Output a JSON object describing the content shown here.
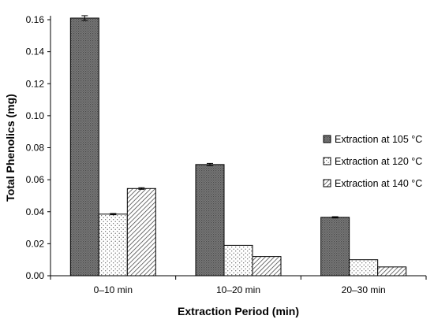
{
  "chart_data": {
    "type": "bar",
    "title": "",
    "xlabel": "Extraction Period (min)",
    "ylabel": "Total Phenolics (mg)",
    "ylim": [
      0,
      0.16
    ],
    "ytick_step": 0.02,
    "ytick_decimals": 2,
    "grid": false,
    "legend_position": "right",
    "categories": [
      "0–10 min",
      "10–20 min",
      "20–30 min"
    ],
    "series": [
      {
        "name": "Extraction at 105 °C",
        "values": [
          0.161,
          0.0695,
          0.0365
        ],
        "errors": [
          0.0015,
          0.0007,
          0.0004
        ],
        "fill": "dark-dots",
        "color": "#6d6d6d"
      },
      {
        "name": "Extraction at 120 °C",
        "values": [
          0.0385,
          0.019,
          0.01
        ],
        "errors": [
          0.0004,
          0,
          0
        ],
        "fill": "light-dots",
        "color": "#ffffff"
      },
      {
        "name": "Extraction at 140 °C",
        "values": [
          0.0545,
          0.012,
          0.0055
        ],
        "errors": [
          0.0005,
          0,
          0
        ],
        "fill": "diagonal-hatch",
        "color": "#ffffff"
      }
    ]
  }
}
